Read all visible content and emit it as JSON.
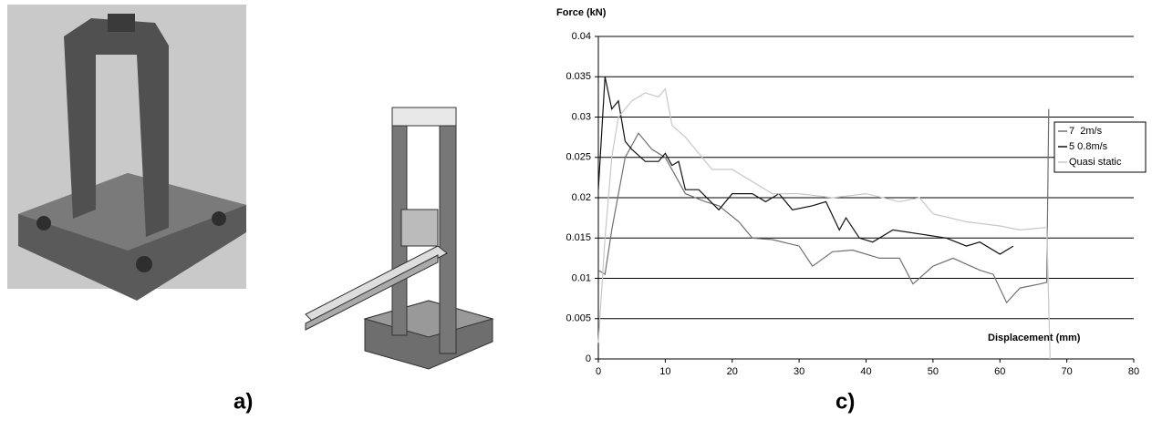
{
  "panel_labels": [
    "a)",
    "c)"
  ],
  "chart_data": {
    "type": "line",
    "y_label": "Force (kN)",
    "x_label": "Displacement (mm)",
    "xlim": [
      0,
      80
    ],
    "xticks": [
      0,
      10,
      20,
      30,
      40,
      50,
      60,
      70,
      80
    ],
    "ylim": [
      0,
      0.04
    ],
    "yticks": [
      0,
      0.005,
      0.01,
      0.015,
      0.02,
      0.025,
      0.03,
      0.035,
      0.04
    ],
    "grid": true,
    "legend": "upper right",
    "series": [
      {
        "name": "7  2m/s",
        "color": "#707070",
        "x": [
          0,
          1,
          2,
          4,
          6,
          8,
          10,
          13,
          16,
          18,
          21,
          23,
          26,
          30,
          32,
          35,
          38,
          42,
          45,
          47,
          50,
          53,
          57,
          59,
          61,
          63,
          66,
          67,
          67.3
        ],
        "values": [
          0.011,
          0.0105,
          0.016,
          0.025,
          0.028,
          0.026,
          0.025,
          0.0205,
          0.0195,
          0.019,
          0.017,
          0.015,
          0.0148,
          0.014,
          0.0115,
          0.0133,
          0.0135,
          0.0125,
          0.0125,
          0.0093,
          0.0115,
          0.0125,
          0.011,
          0.0105,
          0.007,
          0.0088,
          0.0093,
          0.0095,
          0.031
        ]
      },
      {
        "name": "5 0.8m/s",
        "color": "#111111",
        "x": [
          0,
          1,
          2,
          3,
          4,
          5,
          7,
          9,
          10,
          11,
          12,
          13,
          15,
          18,
          20,
          23,
          25,
          27,
          29,
          32,
          34,
          36,
          37,
          39,
          41,
          44,
          48,
          52,
          55,
          57,
          60,
          62
        ],
        "values": [
          0.021,
          0.035,
          0.031,
          0.032,
          0.027,
          0.026,
          0.0245,
          0.0245,
          0.0255,
          0.024,
          0.0245,
          0.021,
          0.021,
          0.0185,
          0.0205,
          0.0205,
          0.0195,
          0.0205,
          0.0185,
          0.019,
          0.0195,
          0.016,
          0.0175,
          0.015,
          0.0145,
          0.016,
          0.0155,
          0.015,
          0.014,
          0.0145,
          0.013,
          0.014
        ]
      },
      {
        "name": "Quasi static",
        "color": "#c8c8c8",
        "x": [
          0,
          1,
          2,
          3,
          5,
          7,
          9,
          10,
          11,
          13,
          15,
          17,
          20,
          23,
          26,
          30,
          35,
          40,
          45,
          48,
          50,
          55,
          60,
          63,
          67,
          67.5
        ],
        "values": [
          0.002,
          0.015,
          0.025,
          0.03,
          0.032,
          0.033,
          0.0325,
          0.0335,
          0.029,
          0.0275,
          0.0255,
          0.0235,
          0.0235,
          0.022,
          0.0205,
          0.0205,
          0.02,
          0.0205,
          0.0195,
          0.02,
          0.018,
          0.017,
          0.0165,
          0.016,
          0.0163,
          0
        ]
      }
    ]
  }
}
